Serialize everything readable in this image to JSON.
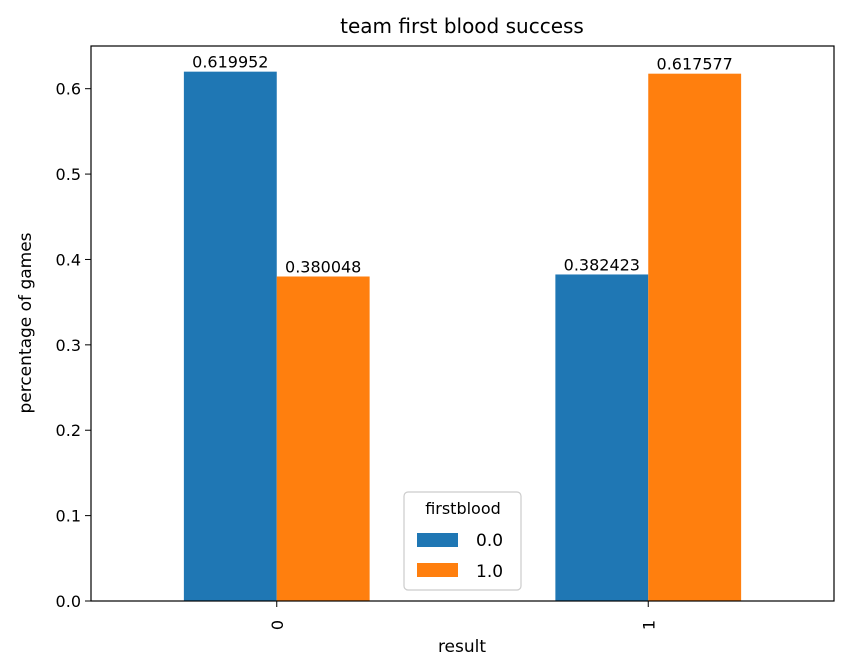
{
  "chart_data": {
    "type": "bar",
    "title": "team first blood success",
    "xlabel": "result",
    "ylabel": "percentage of games",
    "categories": [
      "0",
      "1"
    ],
    "series": [
      {
        "name": "0.0",
        "color": "#1f77b4",
        "values": [
          0.619952,
          0.382423
        ],
        "labels": [
          "0.619952",
          "0.382423"
        ]
      },
      {
        "name": "1.0",
        "color": "#ff7f0e",
        "values": [
          0.380048,
          0.617577
        ],
        "labels": [
          "0.380048",
          "0.617577"
        ]
      }
    ],
    "ylim": [
      0,
      0.65
    ],
    "yticks": [
      "0.0",
      "0.1",
      "0.2",
      "0.3",
      "0.4",
      "0.5",
      "0.6"
    ],
    "legend": {
      "title": "firstblood",
      "placement": "bottom-center"
    },
    "grid": false
  }
}
